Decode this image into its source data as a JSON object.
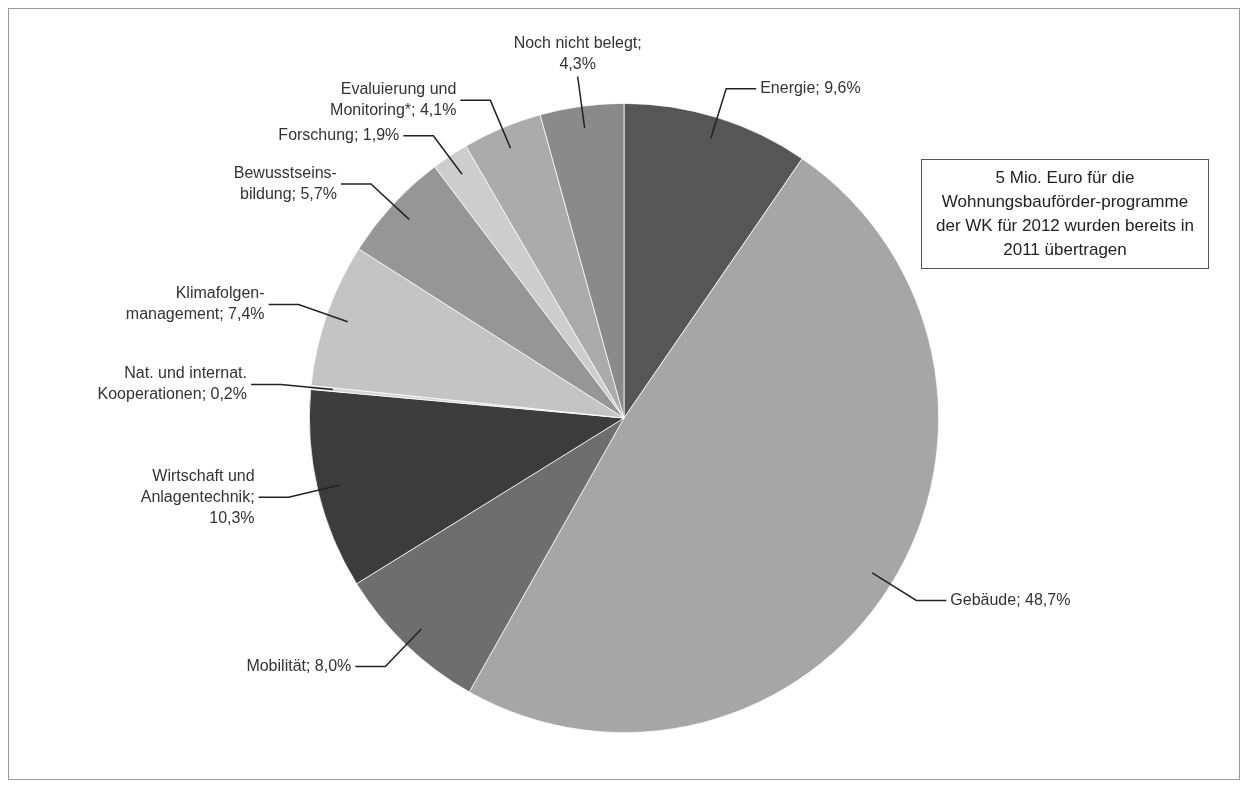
{
  "chart_data": {
    "type": "pie",
    "categories": [
      "Energie; 9,6%",
      "Gebäude; 48,7%",
      "Mobilität; 8,0%",
      "Wirtschaft und Anlagentechnik; 10,3%",
      "Nat. und internat. Kooperationen; 0,2%",
      "Klimafolgen-management; 7,4%",
      "Bewusstseins-bildung; 5,7%",
      "Forschung; 1,9%",
      "Evaluierung und Monitoring*; 4,1%",
      "Noch nicht belegt; 4,3%"
    ],
    "values": [
      9.6,
      48.7,
      8.0,
      10.3,
      0.2,
      7.4,
      5.7,
      1.9,
      4.1,
      4.3
    ],
    "colors": [
      "#565656",
      "#a6a6a6",
      "#6e6e6e",
      "#3c3c3c",
      "#d4d4d4",
      "#c4c4c4",
      "#969696",
      "#cdcdcd",
      "#ababab",
      "#8a8a8a"
    ],
    "legend": false,
    "annotations": [
      "5 Mio. Euro für die Wohnungsbauförder-programme der WK für 2012 wurden bereits in 2011 übertragen"
    ]
  }
}
